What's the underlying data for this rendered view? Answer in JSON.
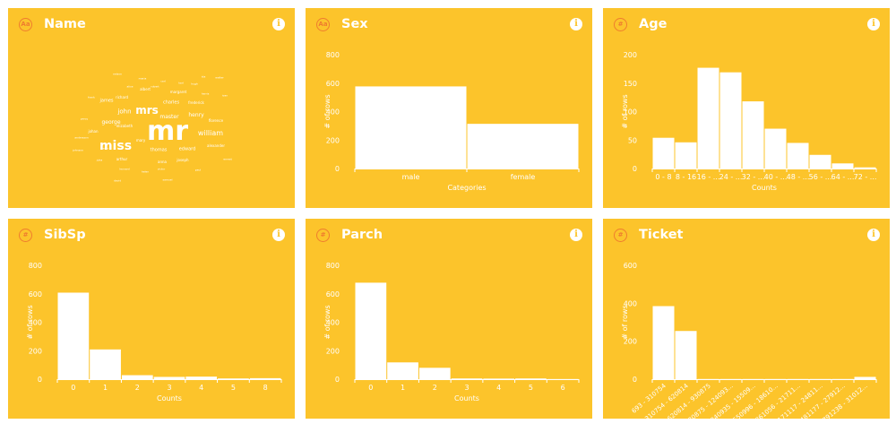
{
  "colors": {
    "card": "#fcc42b",
    "accent": "#ef7d2e",
    "bar": "#ffffff"
  },
  "cards": [
    {
      "id": "name",
      "title": "Name",
      "type_glyph": "Aa",
      "type_icon": "text-type-icon",
      "info_icon": "info-icon"
    },
    {
      "id": "sex",
      "title": "Sex",
      "type_glyph": "Aa",
      "type_icon": "text-type-icon",
      "info_icon": "info-icon"
    },
    {
      "id": "age",
      "title": "Age",
      "type_glyph": "#",
      "type_icon": "number-type-icon",
      "info_icon": "info-icon"
    },
    {
      "id": "sibsp",
      "title": "SibSp",
      "type_glyph": "#",
      "type_icon": "number-type-icon",
      "info_icon": "info-icon"
    },
    {
      "id": "parch",
      "title": "Parch",
      "type_glyph": "#",
      "type_icon": "number-type-icon",
      "info_icon": "info-icon"
    },
    {
      "id": "ticket",
      "title": "Ticket",
      "type_glyph": "#",
      "type_icon": "number-type-icon",
      "info_icon": "info-icon"
    }
  ],
  "name_cloud": {
    "words": [
      {
        "text": "mr",
        "size": 30
      },
      {
        "text": "miss",
        "size": 14
      },
      {
        "text": "mrs",
        "size": 12
      },
      {
        "text": "william",
        "size": 8
      },
      {
        "text": "john",
        "size": 7
      },
      {
        "text": "master",
        "size": 6
      },
      {
        "text": "henry",
        "size": 6
      },
      {
        "text": "george",
        "size": 6
      },
      {
        "text": "charles",
        "size": 5
      },
      {
        "text": "thomas",
        "size": 5
      },
      {
        "text": "edward",
        "size": 5
      },
      {
        "text": "james",
        "size": 5
      },
      {
        "text": "joseph",
        "size": 4
      },
      {
        "text": "frederick",
        "size": 4
      },
      {
        "text": "arthur",
        "size": 4
      },
      {
        "text": "richard",
        "size": 4
      },
      {
        "text": "margaret",
        "size": 4
      },
      {
        "text": "elizabeth",
        "size": 4
      },
      {
        "text": "mary",
        "size": 4
      },
      {
        "text": "anna",
        "size": 4
      },
      {
        "text": "alexander",
        "size": 4
      },
      {
        "text": "johan",
        "size": 4
      },
      {
        "text": "florence",
        "size": 4
      },
      {
        "text": "albert",
        "size": 4
      },
      {
        "text": "robert",
        "size": 3
      },
      {
        "text": "frank",
        "size": 3
      },
      {
        "text": "karl",
        "size": 3
      },
      {
        "text": "harris",
        "size": 3
      },
      {
        "text": "walter",
        "size": 3
      },
      {
        "text": "andersson",
        "size": 3
      },
      {
        "text": "peter",
        "size": 3
      },
      {
        "text": "nelson",
        "size": 3
      },
      {
        "text": "alice",
        "size": 3
      },
      {
        "text": "david",
        "size": 3
      },
      {
        "text": "hugh",
        "size": 3
      },
      {
        "text": "ernest",
        "size": 3
      },
      {
        "text": "maria",
        "size": 3
      },
      {
        "text": "johnson",
        "size": 3
      },
      {
        "text": "leonard",
        "size": 3
      },
      {
        "text": "victor",
        "size": 3
      },
      {
        "text": "ivan",
        "size": 3
      },
      {
        "text": "helen",
        "size": 3
      },
      {
        "text": "samuel",
        "size": 3
      },
      {
        "text": "percy",
        "size": 3
      },
      {
        "text": "paul",
        "size": 3
      },
      {
        "text": "juha",
        "size": 3
      },
      {
        "text": "carl",
        "size": 3
      },
      {
        "text": "ida",
        "size": 3
      }
    ]
  },
  "chart_data": [
    {
      "type": "bar",
      "card": "sex",
      "categories": [
        "male",
        "female"
      ],
      "values": [
        577,
        314
      ],
      "ylabel": "# of rows",
      "xlabel": "Categories",
      "ylim": [
        0,
        800
      ],
      "yticks": [
        0,
        200,
        400,
        600,
        800
      ],
      "grid": false
    },
    {
      "type": "bar",
      "card": "age",
      "categories": [
        "0 - 8",
        "8 - 16",
        "16 - ...",
        "24 - ...",
        "32 - ...",
        "40 - ...",
        "48 - ...",
        "56 - ...",
        "64 - ...",
        "72 - ..."
      ],
      "values": [
        54,
        46,
        177,
        169,
        118,
        70,
        45,
        24,
        9,
        2
      ],
      "ylabel": "# of rows",
      "xlabel": "Counts",
      "ylim": [
        0,
        200
      ],
      "yticks": [
        0,
        50,
        100,
        150,
        200
      ],
      "grid": false
    },
    {
      "type": "bar",
      "card": "sibsp",
      "categories": [
        "0",
        "1",
        "2",
        "3",
        "4",
        "5",
        "8"
      ],
      "values": [
        608,
        209,
        28,
        16,
        18,
        5,
        7
      ],
      "ylabel": "# of rows",
      "xlabel": "Counts",
      "ylim": [
        0,
        800
      ],
      "yticks": [
        0,
        200,
        400,
        600,
        800
      ],
      "grid": false
    },
    {
      "type": "bar",
      "card": "parch",
      "categories": [
        "0",
        "1",
        "2",
        "3",
        "4",
        "5",
        "6"
      ],
      "values": [
        678,
        118,
        80,
        5,
        4,
        5,
        1
      ],
      "ylabel": "# of rows",
      "xlabel": "Counts",
      "ylim": [
        0,
        800
      ],
      "yticks": [
        0,
        200,
        400,
        600,
        800
      ],
      "grid": false
    },
    {
      "type": "bar",
      "card": "ticket",
      "categories": [
        "693 - 310754",
        "310754 - 620814",
        "620814 - 930875",
        "930875 - 124093...",
        "1240935 - 15509...",
        "1550996 - 18610...",
        "1861056 - 21711...",
        "2171117 - 24811...",
        "2481177 - 27912...",
        "2791238 - 31012..."
      ],
      "values": [
        385,
        254,
        1,
        1,
        1,
        1,
        1,
        1,
        1,
        12
      ],
      "ylabel": "# of rows",
      "xlabel": "Counts",
      "ylim": [
        0,
        600
      ],
      "yticks": [
        0,
        200,
        400,
        600
      ],
      "grid": false
    }
  ]
}
